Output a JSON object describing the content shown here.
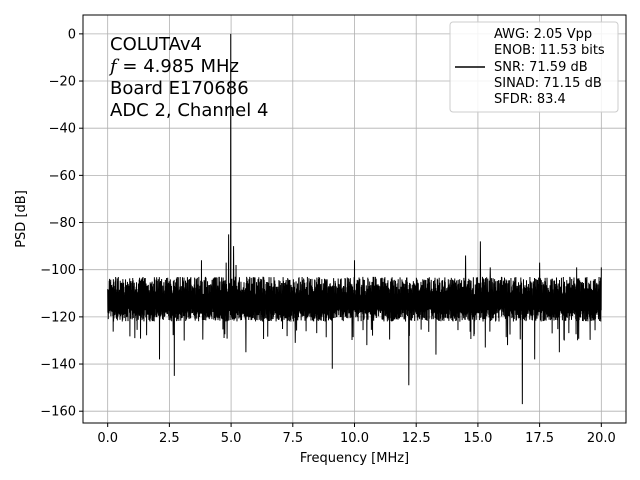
{
  "chart_data": {
    "type": "line",
    "xlabel": "Frequency [MHz]",
    "ylabel": "PSD [dB]",
    "xlim": [
      -1,
      21
    ],
    "ylim": [
      -165,
      8
    ],
    "xticks": [
      0.0,
      2.5,
      5.0,
      7.5,
      10.0,
      12.5,
      15.0,
      17.5,
      20.0
    ],
    "xtick_labels": [
      "0.0",
      "2.5",
      "5.0",
      "7.5",
      "10.0",
      "12.5",
      "15.0",
      "17.5",
      "20.0"
    ],
    "yticks": [
      0,
      -20,
      -40,
      -60,
      -80,
      -100,
      -120,
      -140,
      -160
    ],
    "ytick_labels": [
      "0",
      "−20",
      "−40",
      "−60",
      "−80",
      "−100",
      "−120",
      "−140",
      "−160"
    ],
    "grid": true,
    "annotation": {
      "line1": "COLUTAv4",
      "line2_symbol": "f",
      "line2_rest": " = 4.985 MHz",
      "line3": "Board E170686",
      "line4": "ADC 2, Channel 4"
    },
    "legend": {
      "placement": "upper-right",
      "lines": [
        "AWG: 2.05 Vpp",
        "ENOB: 11.53 bits",
        "SNR: 71.59 dB",
        "SINAD: 71.15 dB",
        "SFDR: 83.4"
      ]
    },
    "series": [
      {
        "color": "#000000",
        "x_start": 0,
        "x_end": 20,
        "noise_floor": -112,
        "noise_upper": -103,
        "noise_lower": -122,
        "fundamental": {
          "x": 4.985,
          "y": 0
        },
        "skirt_peaks": [
          {
            "x": 4.9,
            "y": -85
          },
          {
            "x": 5.1,
            "y": -90
          },
          {
            "x": 4.8,
            "y": -97
          },
          {
            "x": 5.2,
            "y": -98
          }
        ],
        "spurs_up": [
          {
            "x": 3.8,
            "y": -96
          },
          {
            "x": 10.0,
            "y": -96
          },
          {
            "x": 14.5,
            "y": -94
          },
          {
            "x": 15.1,
            "y": -88
          },
          {
            "x": 15.5,
            "y": -99
          },
          {
            "x": 17.5,
            "y": -97
          },
          {
            "x": 19.0,
            "y": -99
          },
          {
            "x": 20.0,
            "y": -99
          }
        ],
        "spurs_down": [
          {
            "x": 1.1,
            "y": -129
          },
          {
            "x": 2.1,
            "y": -138
          },
          {
            "x": 2.7,
            "y": -145
          },
          {
            "x": 3.1,
            "y": -130
          },
          {
            "x": 5.1,
            "y": -137
          },
          {
            "x": 5.6,
            "y": -135
          },
          {
            "x": 7.6,
            "y": -131
          },
          {
            "x": 9.1,
            "y": -142
          },
          {
            "x": 10.5,
            "y": -132
          },
          {
            "x": 12.2,
            "y": -149
          },
          {
            "x": 13.3,
            "y": -136
          },
          {
            "x": 15.3,
            "y": -133
          },
          {
            "x": 16.2,
            "y": -132
          },
          {
            "x": 16.8,
            "y": -157
          },
          {
            "x": 17.3,
            "y": -138
          },
          {
            "x": 18.3,
            "y": -135
          }
        ]
      }
    ]
  }
}
